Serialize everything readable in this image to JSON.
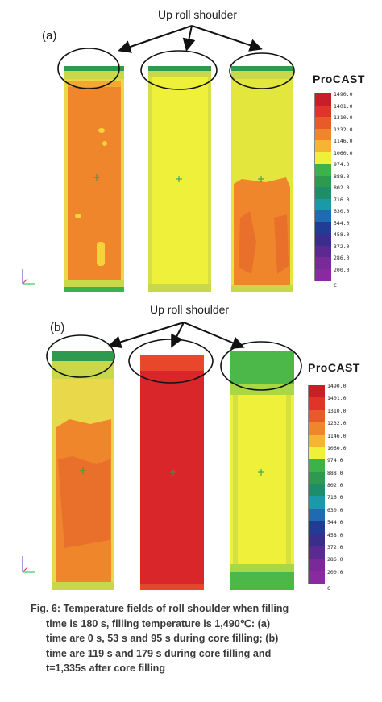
{
  "panel_a": {
    "tag": "(a)",
    "callout": "Up roll shoulder",
    "brand": "ProCAST",
    "legend": {
      "values": [
        "1490.0",
        "1401.0",
        "1310.0",
        "1232.0",
        "1146.0",
        "1060.0",
        "974.0",
        "888.0",
        "802.0",
        "716.0",
        "630.0",
        "544.0",
        "458.0",
        "372.0",
        "286.0",
        "200.0"
      ],
      "unit": "C"
    }
  },
  "panel_b": {
    "tag": "(b)",
    "callout": "Up roll shoulder",
    "brand": "ProCAST",
    "legend": {
      "values": [
        "1490.0",
        "1401.0",
        "1310.0",
        "1232.0",
        "1146.0",
        "1060.0",
        "974.0",
        "888.0",
        "802.0",
        "716.0",
        "630.0",
        "544.0",
        "458.0",
        "372.0",
        "286.0",
        "200.0"
      ],
      "unit": "C"
    }
  },
  "legend_colors": [
    "#c81e28",
    "#e0332a",
    "#e85a2a",
    "#f0862c",
    "#f5b533",
    "#eef03a",
    "#3eb24a",
    "#2e9a4f",
    "#1e8e6a",
    "#1a9aa8",
    "#1f6ab0",
    "#203c94",
    "#3a2d8c",
    "#5b2a90",
    "#7a2a98",
    "#8a2aa0"
  ],
  "caption": {
    "line1": "Fig. 6: Temperature fields of roll shoulder when filling",
    "line2": "time is 180 s, filling temperature is 1,490℃: (a)",
    "line3": "time are 0 s, 53 s and 95 s during core filling; (b)",
    "line4": "time are 119 s and 179 s during core filling and",
    "line5": "t=1,335s after core filling"
  }
}
